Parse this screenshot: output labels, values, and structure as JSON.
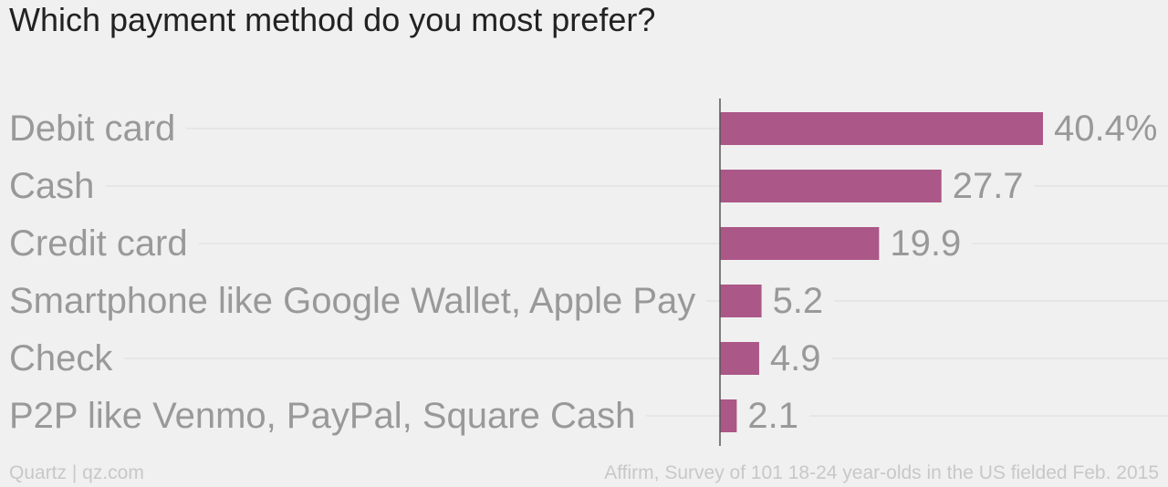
{
  "colors": {
    "bar": "#ab5787",
    "label": "#999999",
    "value": "#999999",
    "gridline": "#e2e2e2",
    "axis": "#555555",
    "background": "#f0f0f0"
  },
  "footer": {
    "source_left": "Quartz | qz.com",
    "source_right": "Affirm, Survey of 101 18-24 year-olds in the US fielded Feb. 2015"
  },
  "chart_data": {
    "type": "bar",
    "orientation": "horizontal",
    "title": "Which payment method do you most prefer?",
    "categories": [
      "Debit card",
      "Cash",
      "Credit card",
      "Smartphone like Google Wallet, Apple Pay",
      "Check",
      "P2P like Venmo, PayPal, Square Cash"
    ],
    "values": [
      40.4,
      27.7,
      19.9,
      5.2,
      4.9,
      2.1
    ],
    "value_labels": [
      "40.4%",
      "27.7",
      "19.9",
      "5.2",
      "4.9",
      "2.1"
    ],
    "xlim": [
      0,
      40.4
    ],
    "xlabel": "",
    "ylabel": "",
    "grid": true,
    "legend": "none"
  }
}
